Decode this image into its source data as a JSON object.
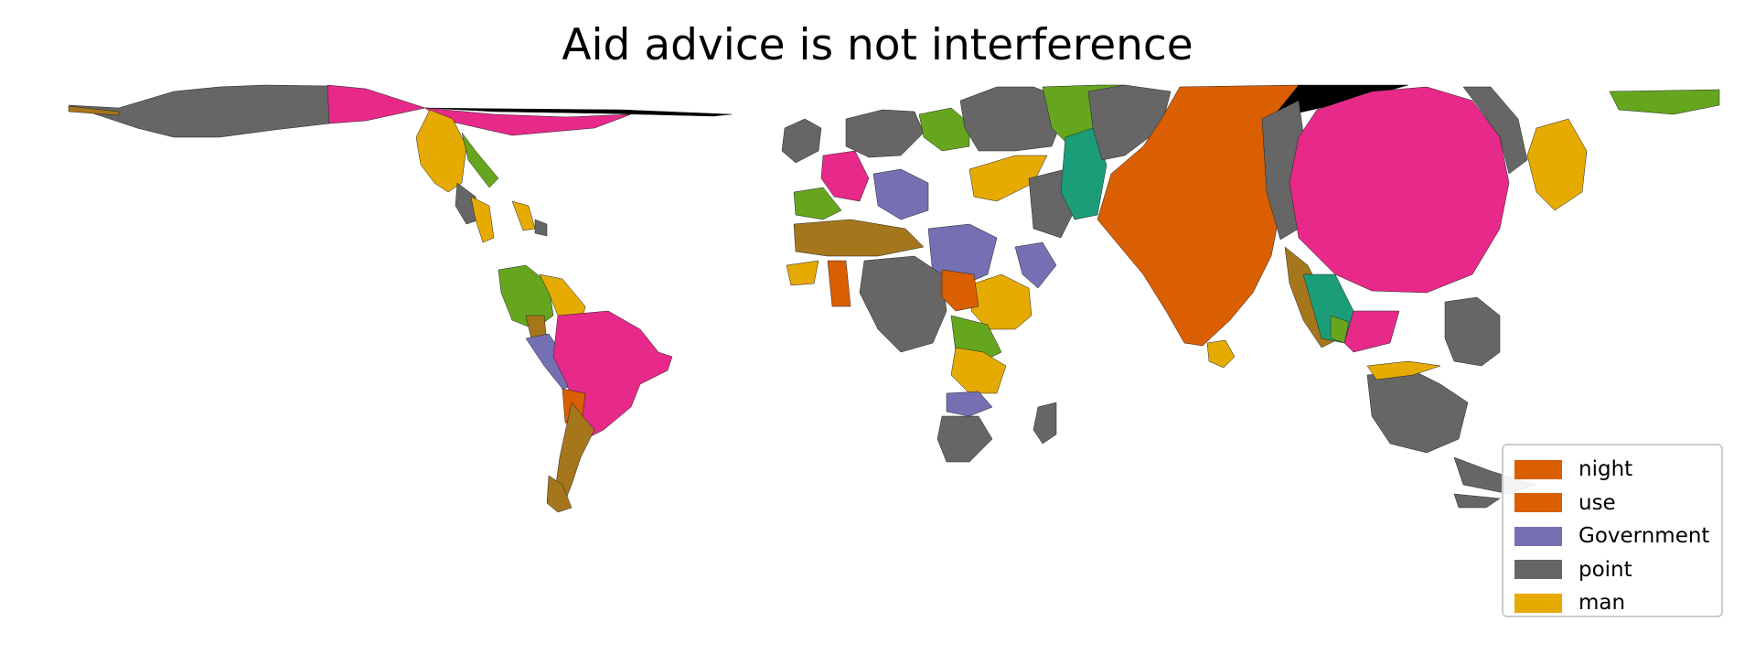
{
  "title": "Aid advice is not interference",
  "legend": {
    "placement": "bottom-right",
    "items": [
      {
        "label": "night",
        "color": "#d95f02"
      },
      {
        "label": "use",
        "color": "#d95f02"
      },
      {
        "label": "Government",
        "color": "#7570b3"
      },
      {
        "label": "point",
        "color": "#666666"
      },
      {
        "label": "man",
        "color": "#e6ab02"
      }
    ]
  },
  "palette": {
    "pink": "#e7298a",
    "orange": "#d95f02",
    "purple": "#7570b3",
    "gray": "#666666",
    "yellow": "#e6ab02",
    "green": "#66a61e",
    "teal": "#1b9e77",
    "brown": "#a6761d",
    "black": "#000000"
  }
}
